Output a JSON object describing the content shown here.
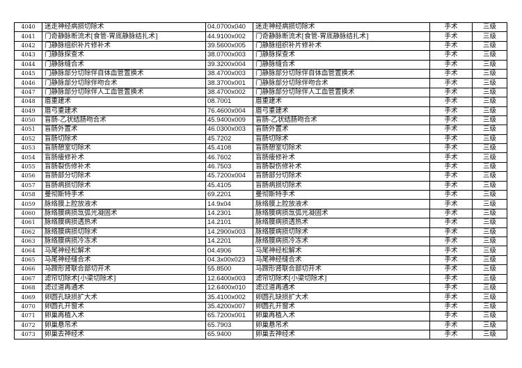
{
  "rows": [
    [
      "4040",
      "迷走神经病损切除术",
      "04.0700x040",
      "迷走神经病损切除术",
      "手术",
      "三级"
    ],
    [
      "4041",
      "门奇静脉断流术[食管-胃底静脉结扎术]",
      "44.9100x002",
      "门奇静脉断流术[食管-胃底静脉结扎术]",
      "手术",
      "三级"
    ],
    [
      "4042",
      "门静脉组织补片修补术",
      "39.5600x005",
      "门静脉组织补片修补术",
      "手术",
      "三级"
    ],
    [
      "4043",
      "门静脉探查术",
      "38.0700x003",
      "门静脉探查术",
      "手术",
      "三级"
    ],
    [
      "4044",
      "门静脉缝合术",
      "39.3200x004",
      "门静脉缝合术",
      "手术",
      "三级"
    ],
    [
      "4045",
      "门静脉部分切除伴自体血管置换术",
      "38.4700x003",
      "门静脉部分切除伴自体血管置换术",
      "手术",
      "三级"
    ],
    [
      "4046",
      "门静脉部分切除伴吻合术",
      "38.3700x001",
      "门静脉部分切除伴吻合术",
      "手术",
      "三级"
    ],
    [
      "4047",
      "门静脉部分切除伴人工血管置换术",
      "38.4700x002",
      "门静脉部分切除伴人工血管置换术",
      "手术",
      "三级"
    ],
    [
      "4048",
      "眉重建术",
      "08.7001",
      "眉重建术",
      "手术",
      "三级"
    ],
    [
      "4049",
      "眉弓重建术",
      "76.4600x004",
      "眉弓重建术",
      "手术",
      "三级"
    ],
    [
      "4050",
      "盲肠-乙状结肠吻合术",
      "45.9400x009",
      "盲肠-乙状结肠吻合术",
      "手术",
      "三级"
    ],
    [
      "4051",
      "盲肠外置术",
      "46.0300x003",
      "盲肠外置术",
      "手术",
      "三级"
    ],
    [
      "4052",
      "盲肠切除术",
      "45.7202",
      "盲肠切除术",
      "手术",
      "三级"
    ],
    [
      "4053",
      "盲肠憩室切除术",
      "45.4108",
      "盲肠憩室切除术",
      "手术",
      "三级"
    ],
    [
      "4054",
      "盲肠瘘修补术",
      "46.7602",
      "盲肠瘘修补术",
      "手术",
      "三级"
    ],
    [
      "4055",
      "盲肠裂伤修补术",
      "46.7503",
      "盲肠裂伤修补术",
      "手术",
      "三级"
    ],
    [
      "4056",
      "盲肠部分切除术",
      "45.7200x004",
      "盲肠部分切除术",
      "手术",
      "三级"
    ],
    [
      "4057",
      "盲肠病损切除术",
      "45.4105",
      "盲肠病损切除术",
      "手术",
      "三级"
    ],
    [
      "4058",
      "曼彻斯特手术",
      "69.2201",
      "曼彻斯特手术",
      "手术",
      "三级"
    ],
    [
      "4059",
      "脉络膜上腔放液术",
      "14.9x04",
      "脉络膜上腔放液术",
      "手术",
      "三级"
    ],
    [
      "4060",
      "脉络膜病损氙弧光凝固术",
      "14.2301",
      "脉络膜病损氙弧光凝固术",
      "手术",
      "三级"
    ],
    [
      "4061",
      "脉络膜病损透热术",
      "14.2101",
      "脉络膜病损透热术",
      "手术",
      "三级"
    ],
    [
      "4062",
      "脉络膜病损切除术",
      "14.2900x003",
      "脉络膜病损切除术",
      "手术",
      "三级"
    ],
    [
      "4063",
      "脉络膜病损冷冻术",
      "14.2201",
      "脉络膜病损冷冻术",
      "手术",
      "三级"
    ],
    [
      "4064",
      "马尾神经松解术",
      "04.4906",
      "马尾神经松解术",
      "手术",
      "三级"
    ],
    [
      "4065",
      "马尾神经缝合术",
      "04.3x00x023",
      "马尾神经缝合术",
      "手术",
      "三级"
    ],
    [
      "4066",
      "马蹄形肾联合部切开术",
      "55.8500",
      "马蹄形肾联合部切开术",
      "手术",
      "三级"
    ],
    [
      "4067",
      "滤帘切除术[小梁切除术]",
      "12.6400x003",
      "滤帘切除术[小梁切除术]",
      "手术",
      "三级"
    ],
    [
      "4068",
      "滤过道再通术",
      "12.6400x010",
      "滤过道再通术",
      "手术",
      "三级"
    ],
    [
      "4069",
      "卵圆孔缺损扩大术",
      "35.4100x002",
      "卵圆孔缺损扩大术",
      "手术",
      "三级"
    ],
    [
      "4070",
      "卵圆孔开窗术",
      "35.4200x007",
      "卵圆孔开窗术",
      "手术",
      "三级"
    ],
    [
      "4071",
      "卵巢再植入术",
      "65.7200x001",
      "卵巢再植入术",
      "手术",
      "三级"
    ],
    [
      "4072",
      "卵巢悬吊术",
      "65.7903",
      "卵巢悬吊术",
      "手术",
      "三级"
    ],
    [
      "4073",
      "卵巢去神经术",
      "65.9400",
      "卵巢去神经术",
      "手术",
      "三级"
    ]
  ]
}
